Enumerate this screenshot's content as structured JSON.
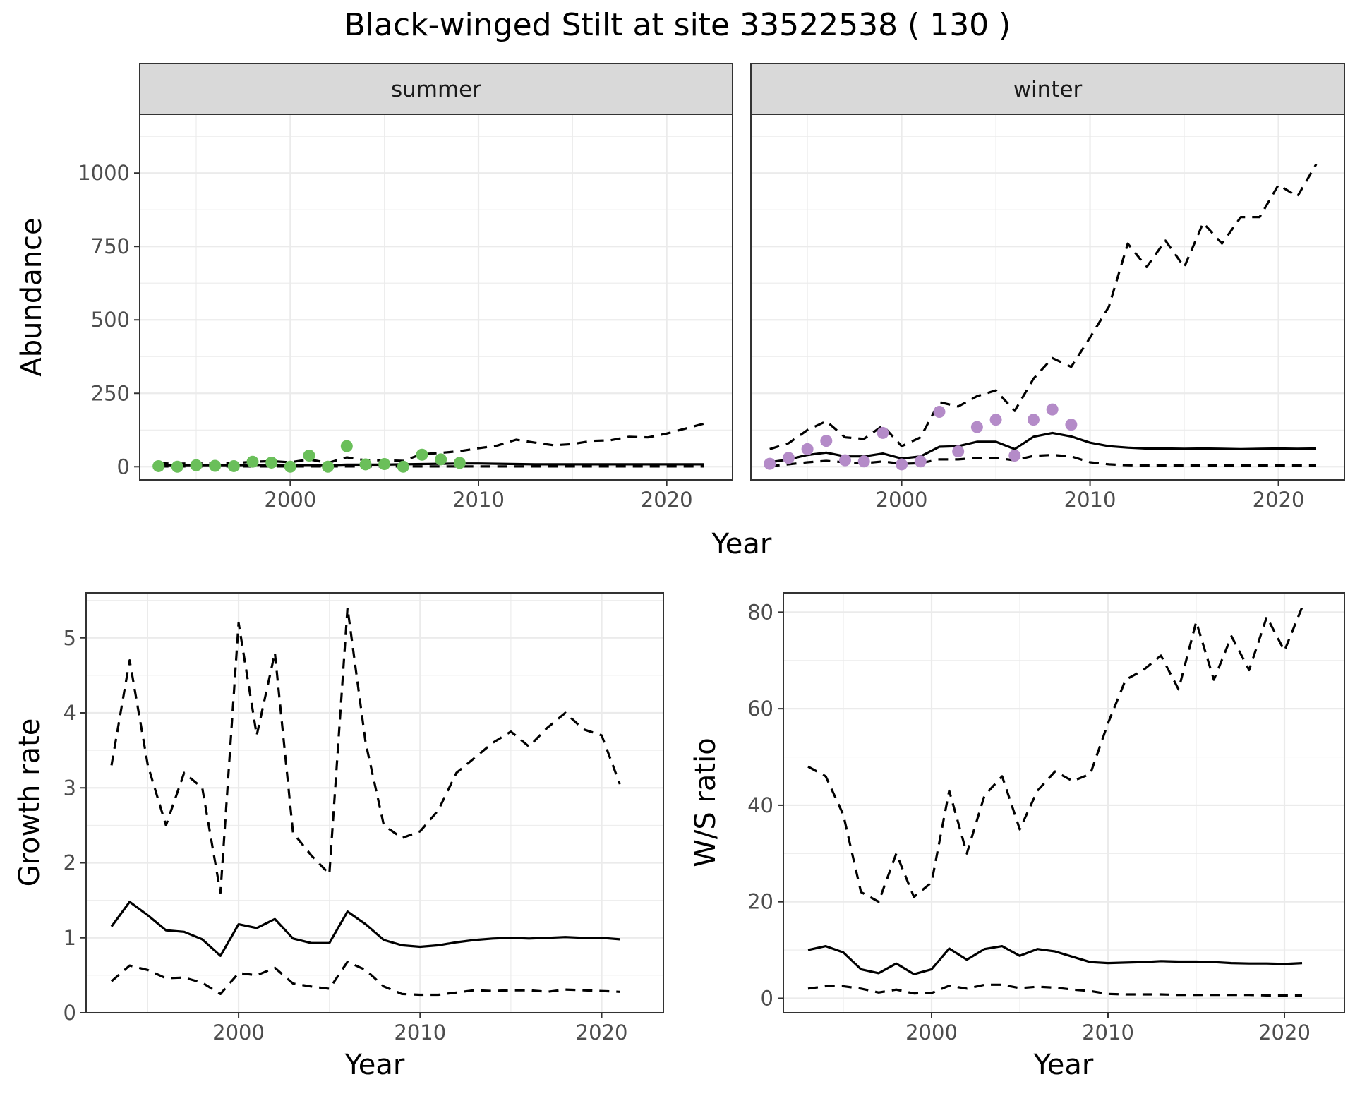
{
  "title": "Black-winged Stilt at site 33522538 ( 130 )",
  "colors": {
    "summer_points": "#6ABF5A",
    "winter_points": "#B48BC8"
  },
  "chart_data": [
    {
      "id": "abundance-summer",
      "type": "line",
      "strip": "summer",
      "ylabel": "Abundance",
      "xlabel": "Year",
      "xlim": [
        1992,
        2023.5
      ],
      "ylim": [
        -45,
        1200
      ],
      "xticks": [
        2000,
        2010,
        2020
      ],
      "yticks": [
        0,
        250,
        500,
        750,
        1000
      ],
      "x": [
        1993,
        1994,
        1995,
        1996,
        1997,
        1998,
        1999,
        2000,
        2001,
        2002,
        2003,
        2004,
        2005,
        2006,
        2007,
        2008,
        2009,
        2010,
        2011,
        2012,
        2013,
        2014,
        2015,
        2016,
        2017,
        2018,
        2019,
        2020,
        2021,
        2022
      ],
      "series": [
        {
          "style": "solid",
          "values": [
            5,
            5,
            5,
            5,
            5,
            6,
            6,
            5,
            6,
            5,
            7,
            7,
            7,
            8,
            9,
            10,
            11,
            11,
            10,
            9,
            8,
            8,
            8,
            8,
            8,
            8,
            8,
            8,
            8,
            8
          ]
        },
        {
          "style": "dashed",
          "values": [
            12,
            10,
            12,
            11,
            12,
            17,
            19,
            15,
            25,
            13,
            32,
            22,
            22,
            20,
            43,
            47,
            53,
            63,
            72,
            92,
            82,
            73,
            77,
            88,
            90,
            102,
            100,
            113,
            130,
            147
          ]
        },
        {
          "style": "dashed",
          "values": [
            1,
            1,
            1,
            1,
            1,
            1,
            1,
            1,
            1,
            1,
            1,
            1,
            1,
            1,
            1,
            1,
            1,
            1,
            1,
            1,
            1,
            1,
            1,
            1,
            1,
            1,
            1,
            1,
            1,
            1
          ]
        }
      ],
      "points": {
        "x": [
          1993,
          1994,
          1995,
          1996,
          1997,
          1998,
          1999,
          2000,
          2001,
          2002,
          2003,
          2004,
          2005,
          2006,
          2007,
          2008,
          2009
        ],
        "values": [
          2,
          0,
          5,
          3,
          2,
          17,
          14,
          0,
          38,
          0,
          70,
          8,
          9,
          0,
          41,
          25,
          13
        ]
      }
    },
    {
      "id": "abundance-winter",
      "type": "line",
      "strip": "winter",
      "xlabel": "Year",
      "xlim": [
        1992,
        2023.5
      ],
      "ylim": [
        -45,
        1200
      ],
      "xticks": [
        2000,
        2010,
        2020
      ],
      "x": [
        1993,
        1994,
        1995,
        1996,
        1997,
        1998,
        1999,
        2000,
        2001,
        2002,
        2003,
        2004,
        2005,
        2006,
        2007,
        2008,
        2009,
        2010,
        2011,
        2012,
        2013,
        2014,
        2015,
        2016,
        2017,
        2018,
        2019,
        2020,
        2021,
        2022
      ],
      "series": [
        {
          "style": "solid",
          "values": [
            15,
            25,
            40,
            48,
            35,
            35,
            45,
            28,
            35,
            68,
            70,
            85,
            85,
            60,
            102,
            115,
            103,
            82,
            70,
            65,
            62,
            62,
            61,
            62,
            61,
            60,
            61,
            62,
            61,
            62
          ]
        },
        {
          "style": "dashed",
          "values": [
            60,
            80,
            125,
            155,
            100,
            95,
            140,
            70,
            100,
            220,
            205,
            240,
            260,
            190,
            300,
            370,
            340,
            440,
            545,
            760,
            680,
            770,
            680,
            830,
            760,
            850,
            850,
            960,
            920,
            1030
          ]
        },
        {
          "style": "dashed",
          "values": [
            2,
            8,
            15,
            20,
            15,
            12,
            18,
            10,
            12,
            25,
            25,
            30,
            30,
            22,
            37,
            40,
            35,
            15,
            8,
            5,
            4,
            4,
            4,
            4,
            4,
            4,
            4,
            4,
            4,
            4
          ]
        }
      ],
      "points": {
        "x": [
          1993,
          1994,
          1995,
          1996,
          1997,
          1998,
          1999,
          2000,
          2001,
          2002,
          2003,
          2004,
          2005,
          2006,
          2007,
          2008,
          2009
        ],
        "values": [
          10,
          30,
          60,
          88,
          22,
          18,
          115,
          8,
          18,
          187,
          52,
          135,
          160,
          38,
          160,
          195,
          143
        ]
      }
    },
    {
      "id": "growth-rate",
      "type": "line",
      "ylabel": "Growth rate",
      "xlabel": "Year",
      "xlim": [
        1991.6,
        2023.4
      ],
      "ylim": [
        0,
        5.6
      ],
      "xticks": [
        2000,
        2010,
        2020
      ],
      "yticks": [
        0,
        1,
        2,
        3,
        4,
        5
      ],
      "x": [
        1993,
        1994,
        1995,
        1996,
        1997,
        1998,
        1999,
        2000,
        2001,
        2002,
        2003,
        2004,
        2005,
        2006,
        2007,
        2008,
        2009,
        2010,
        2011,
        2012,
        2013,
        2014,
        2015,
        2016,
        2017,
        2018,
        2019,
        2020,
        2021
      ],
      "series": [
        {
          "style": "solid",
          "values": [
            1.15,
            1.48,
            1.3,
            1.1,
            1.08,
            0.98,
            0.76,
            1.18,
            1.13,
            1.25,
            0.99,
            0.93,
            0.93,
            1.35,
            1.18,
            0.97,
            0.9,
            0.88,
            0.9,
            0.94,
            0.97,
            0.99,
            1.0,
            0.99,
            1.0,
            1.01,
            1.0,
            1.0,
            0.98
          ]
        },
        {
          "style": "dashed",
          "values": [
            3.3,
            4.7,
            3.3,
            2.5,
            3.2,
            3.0,
            1.6,
            5.2,
            3.7,
            4.8,
            2.4,
            2.1,
            1.85,
            5.4,
            3.6,
            2.5,
            2.33,
            2.42,
            2.7,
            3.2,
            3.4,
            3.6,
            3.75,
            3.55,
            3.8,
            4.0,
            3.78,
            3.7,
            3.05
          ]
        },
        {
          "style": "dashed",
          "values": [
            0.42,
            0.63,
            0.57,
            0.46,
            0.47,
            0.4,
            0.25,
            0.53,
            0.5,
            0.6,
            0.39,
            0.35,
            0.32,
            0.68,
            0.57,
            0.35,
            0.25,
            0.24,
            0.24,
            0.27,
            0.3,
            0.29,
            0.3,
            0.3,
            0.28,
            0.31,
            0.3,
            0.29,
            0.28
          ]
        }
      ]
    },
    {
      "id": "ws-ratio",
      "type": "line",
      "ylabel": "W/S ratio",
      "xlabel": "Year",
      "xlim": [
        1991.6,
        2023.4
      ],
      "ylim": [
        -3,
        84
      ],
      "xticks": [
        2000,
        2010,
        2020
      ],
      "yticks": [
        0,
        20,
        40,
        60,
        80
      ],
      "x": [
        1993,
        1994,
        1995,
        1996,
        1997,
        1998,
        1999,
        2000,
        2001,
        2002,
        2003,
        2004,
        2005,
        2006,
        2007,
        2008,
        2009,
        2010,
        2011,
        2012,
        2013,
        2014,
        2015,
        2016,
        2017,
        2018,
        2019,
        2020,
        2021
      ],
      "series": [
        {
          "style": "solid",
          "values": [
            10,
            10.8,
            9.5,
            6,
            5.2,
            7.2,
            5,
            6,
            10.3,
            8,
            10.2,
            10.8,
            8.8,
            10.2,
            9.7,
            8.6,
            7.5,
            7.3,
            7.4,
            7.5,
            7.7,
            7.6,
            7.6,
            7.5,
            7.3,
            7.2,
            7.2,
            7.1,
            7.3
          ]
        },
        {
          "style": "dashed",
          "values": [
            48,
            46,
            38,
            22,
            20,
            30,
            21,
            24,
            43,
            30,
            42,
            46,
            35,
            43,
            47,
            45,
            46.5,
            57,
            66,
            68,
            71,
            64,
            78,
            66,
            75,
            68,
            79,
            72,
            81
          ]
        },
        {
          "style": "dashed",
          "values": [
            2,
            2.5,
            2.5,
            2,
            1.2,
            1.8,
            1,
            1.1,
            2.6,
            2,
            2.8,
            2.8,
            2.1,
            2.4,
            2.2,
            1.8,
            1.5,
            0.9,
            0.8,
            0.8,
            0.8,
            0.7,
            0.7,
            0.7,
            0.7,
            0.7,
            0.6,
            0.6,
            0.6
          ]
        }
      ]
    }
  ]
}
